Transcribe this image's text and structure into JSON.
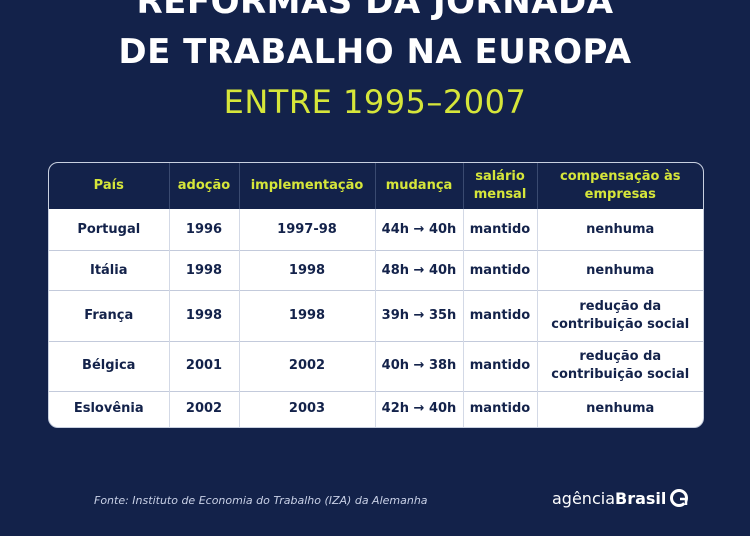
{
  "title": {
    "line1": "REFORMAS DA JORNADA",
    "line2": "DE TRABALHO NA EUROPA",
    "line3": "ENTRE 1995–2007"
  },
  "table": {
    "headers": [
      "País",
      "adoção",
      "implementação",
      "mudança",
      "salário mensal",
      "compensação às empresas"
    ],
    "rows": [
      [
        "Portugal",
        "1996",
        "1997-98",
        "44h → 40h",
        "mantido",
        "nenhuma"
      ],
      [
        "Itália",
        "1998",
        "1998",
        "48h → 40h",
        "mantido",
        "nenhuma"
      ],
      [
        "França",
        "1998",
        "1998",
        "39h → 35h",
        "mantido",
        "redução da contribuição social"
      ],
      [
        "Bélgica",
        "2001",
        "2002",
        "40h → 38h",
        "mantido",
        "redução da contribuição social"
      ],
      [
        "Eslovênia",
        "2002",
        "2003",
        "42h → 40h",
        "mantido",
        "nenhuma"
      ]
    ]
  },
  "footer": {
    "source": "Fonte: Instituto de Economia do Trabalho (IZA) da Alemanha"
  },
  "logo": {
    "part1": "agência",
    "part2": "Brasil",
    "icon": "agencia-brasil-logo-icon"
  },
  "colors": {
    "background": "#13224a",
    "accent": "#d6e63a",
    "text_dark": "#13224a"
  }
}
